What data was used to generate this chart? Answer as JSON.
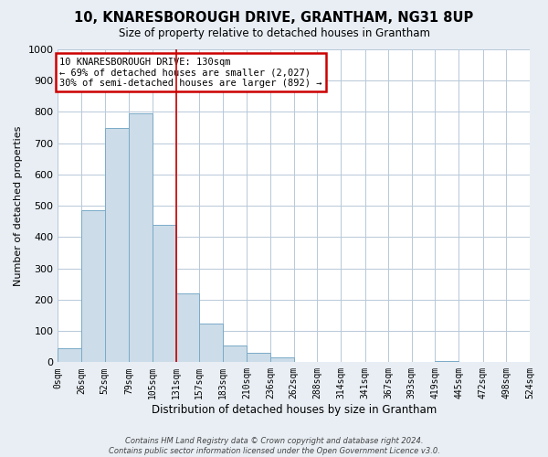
{
  "title": "10, KNARESBOROUGH DRIVE, GRANTHAM, NG31 8UP",
  "subtitle": "Size of property relative to detached houses in Grantham",
  "xlabel": "Distribution of detached houses by size in Grantham",
  "ylabel": "Number of detached properties",
  "bin_edges": [
    0,
    26,
    52,
    79,
    105,
    131,
    157,
    183,
    210,
    236,
    262,
    288,
    314,
    341,
    367,
    393,
    419,
    445,
    472,
    498,
    524
  ],
  "bar_heights": [
    45,
    485,
    750,
    795,
    440,
    220,
    125,
    55,
    30,
    15,
    0,
    0,
    0,
    0,
    0,
    0,
    5,
    0,
    0,
    0
  ],
  "bar_color": "#ccdce8",
  "bar_edge_color": "#7aaac8",
  "property_line_x": 131,
  "property_line_color": "#cc0000",
  "ylim": [
    0,
    1000
  ],
  "yticks": [
    0,
    100,
    200,
    300,
    400,
    500,
    600,
    700,
    800,
    900,
    1000
  ],
  "xtick_labels": [
    "0sqm",
    "26sqm",
    "52sqm",
    "79sqm",
    "105sqm",
    "131sqm",
    "157sqm",
    "183sqm",
    "210sqm",
    "236sqm",
    "262sqm",
    "288sqm",
    "314sqm",
    "341sqm",
    "367sqm",
    "393sqm",
    "419sqm",
    "445sqm",
    "472sqm",
    "498sqm",
    "524sqm"
  ],
  "annotation_title": "10 KNARESBOROUGH DRIVE: 130sqm",
  "annotation_line1": "← 69% of detached houses are smaller (2,027)",
  "annotation_line2": "30% of semi-detached houses are larger (892) →",
  "annotation_box_color": "#cc0000",
  "footer_line1": "Contains HM Land Registry data © Crown copyright and database right 2024.",
  "footer_line2": "Contains public sector information licensed under the Open Government Licence v3.0.",
  "bg_color": "#e8eef4",
  "plot_bg_color": "#ffffff",
  "grid_color": "#b8c8d8"
}
